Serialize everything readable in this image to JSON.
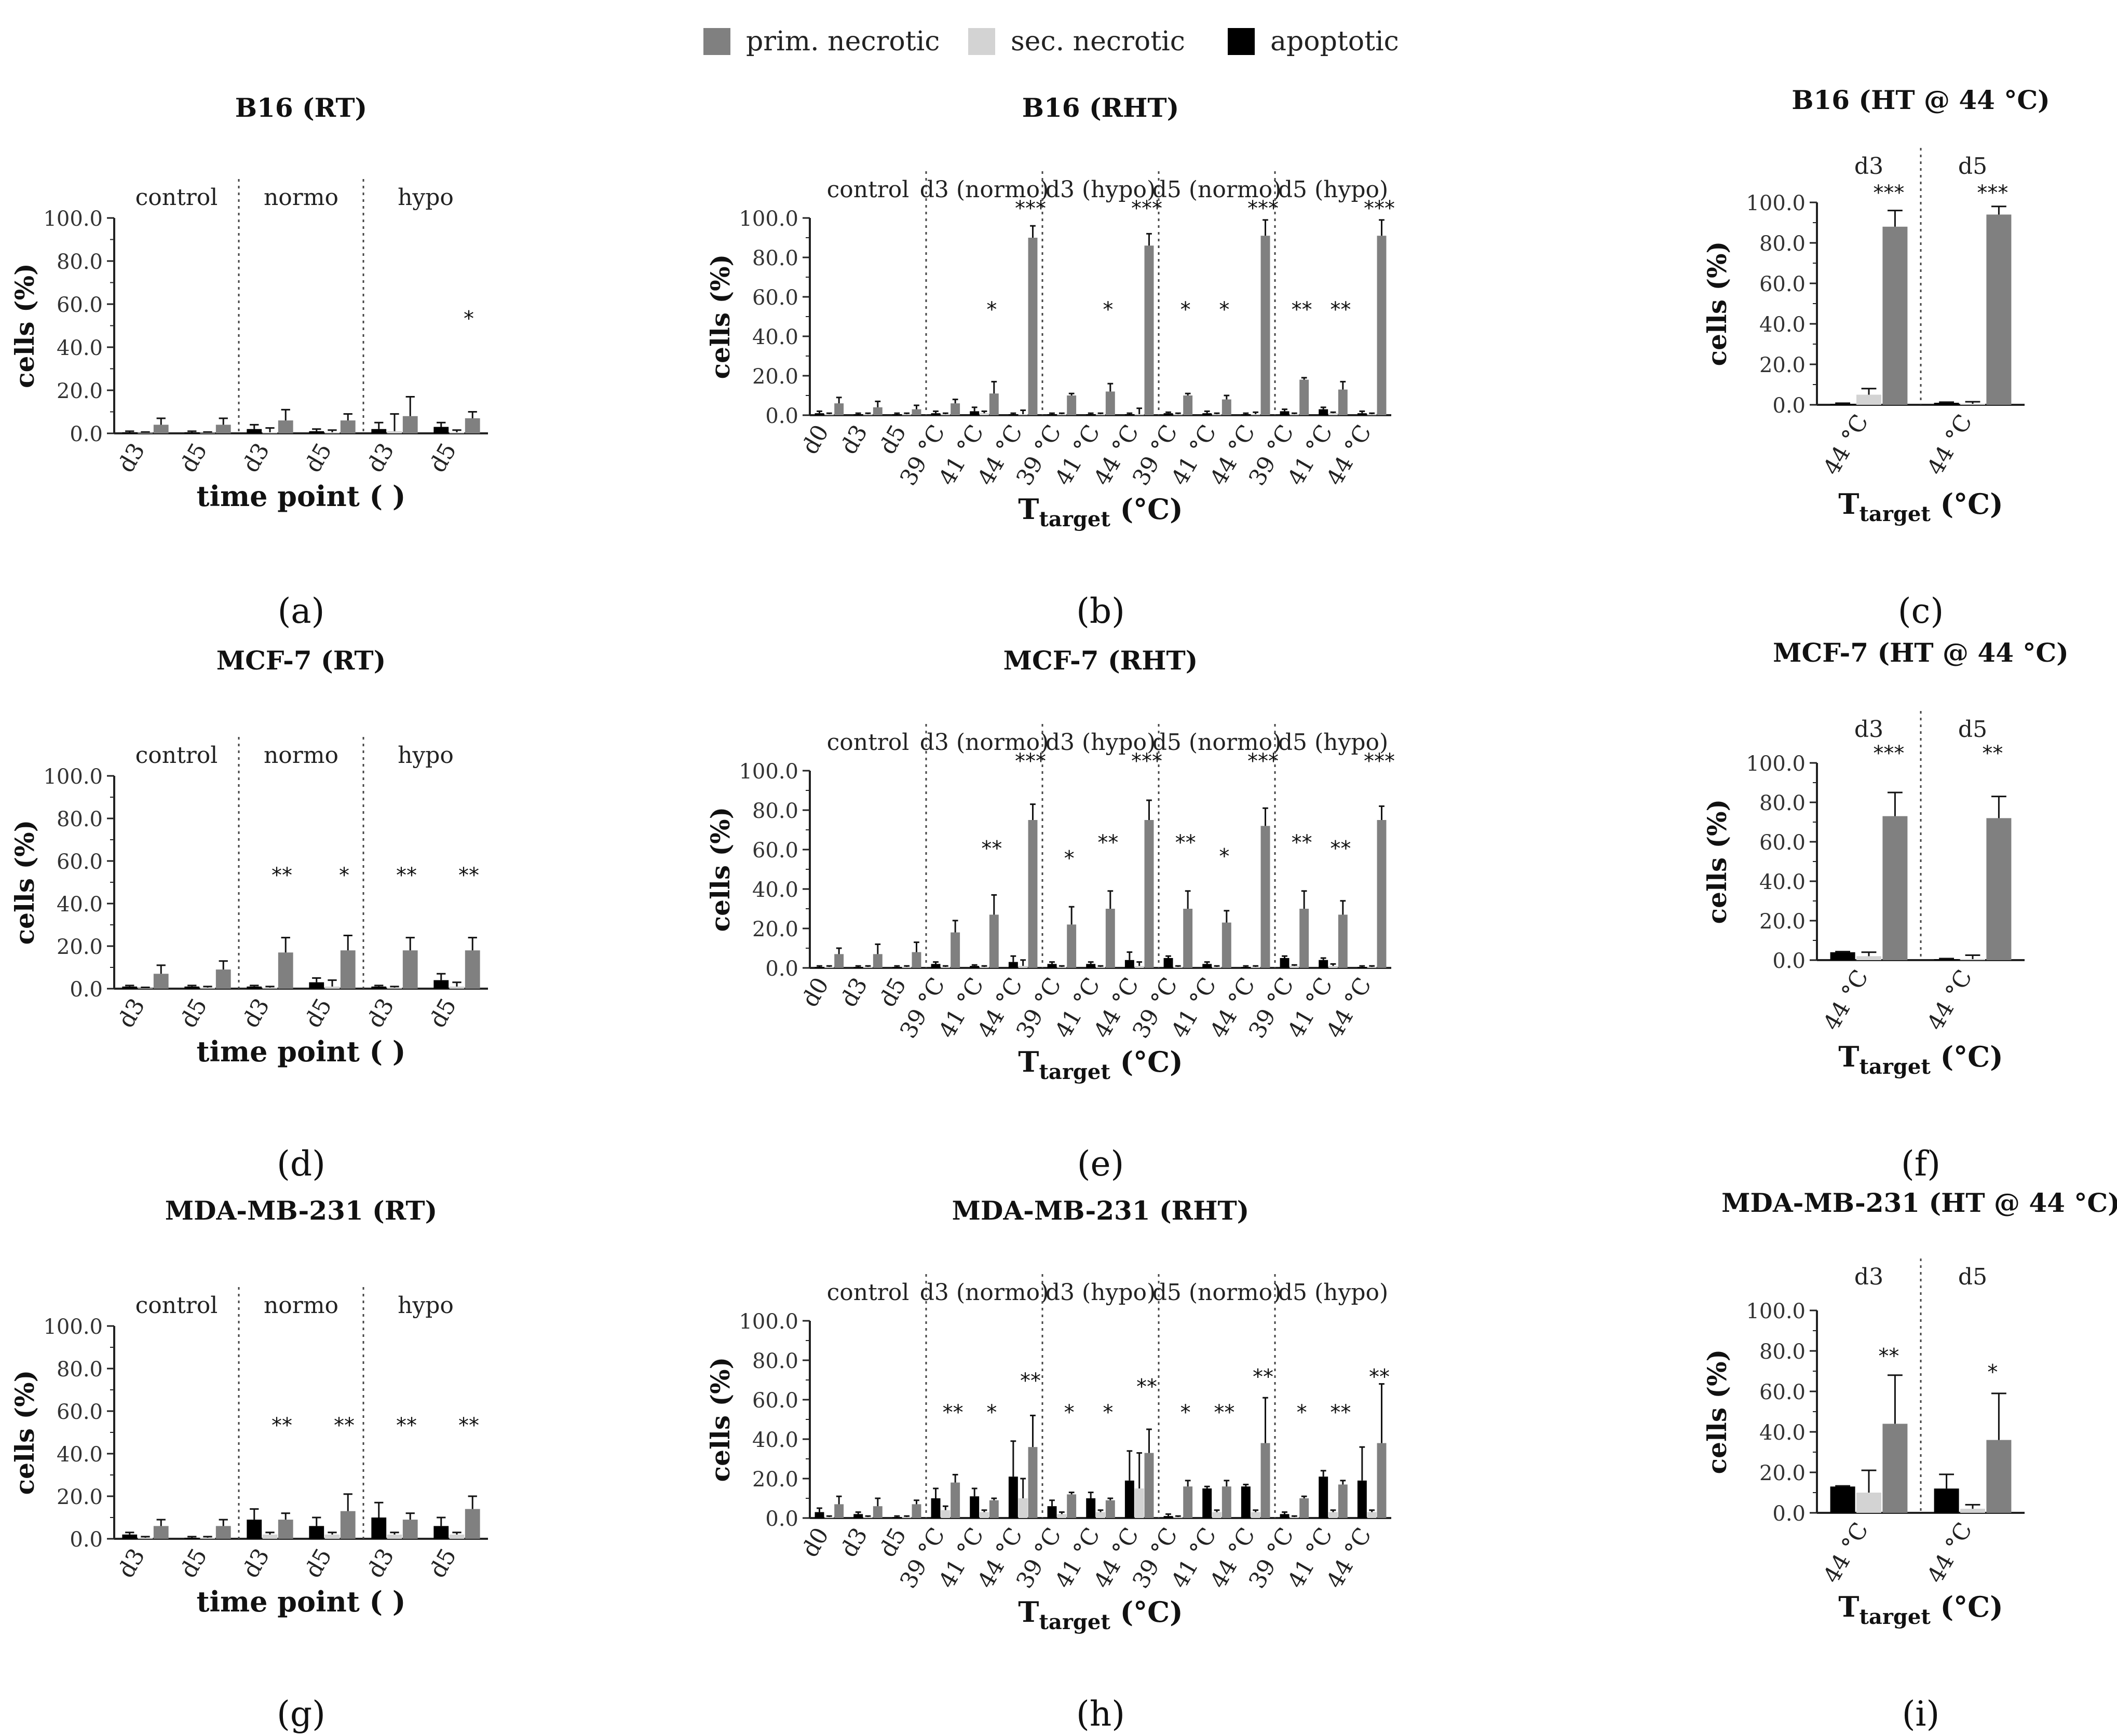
{
  "legend": {
    "items": [
      {
        "label": "prim. necrotic",
        "color": "#808080"
      },
      {
        "label": "sec. necrotic",
        "color": "#d3d3d3"
      },
      {
        "label": "apoptotic",
        "color": "#000000"
      }
    ]
  },
  "colors": {
    "prim": "#808080",
    "sec": "#d3d3d3",
    "apop": "#000000"
  },
  "chart_data": [
    {
      "id": "a",
      "letter": "(a)",
      "type": "bar",
      "title": "B16 (RT)",
      "ylabel": "cells (%)",
      "xlabel_main": "time point ( )",
      "xlabel_sub": "",
      "ylim": [
        0,
        100
      ],
      "yticks": [
        "0.0",
        "20.0",
        "40.0",
        "60.0",
        "80.0",
        "100.0"
      ],
      "groups": [
        "control",
        "normo",
        "hypo"
      ],
      "group_sizes": [
        2,
        2,
        2
      ],
      "categories": [
        "d3",
        "d5",
        "d3",
        "d5",
        "d3",
        "d5"
      ],
      "series": [
        {
          "name": "apoptotic",
          "values": [
            0.5,
            0.5,
            2,
            1,
            2,
            3
          ]
        },
        {
          "name": "sec. necrotic",
          "values": [
            0.3,
            0.3,
            0.5,
            0.5,
            1,
            0.5
          ]
        },
        {
          "name": "prim. necrotic",
          "values": [
            4,
            4,
            6,
            6,
            8,
            7
          ]
        }
      ],
      "errors": [
        {
          "name": "apoptotic",
          "values": [
            0.5,
            0.5,
            2,
            1,
            3,
            2
          ]
        },
        {
          "name": "sec. necrotic",
          "values": [
            0.3,
            0.3,
            2,
            1,
            8,
            1
          ]
        },
        {
          "name": "prim. necrotic",
          "values": [
            3,
            3,
            5,
            3,
            9,
            3
          ]
        }
      ],
      "annotations": [
        "",
        "",
        "",
        "",
        "",
        "*"
      ]
    },
    {
      "id": "b",
      "letter": "(b)",
      "type": "bar",
      "title": "B16 (RHT)",
      "ylabel": "cells (%)",
      "xlabel_main": "T",
      "xlabel_sub": "target",
      "xlabel_tail": " (°C)",
      "ylim": [
        0,
        100
      ],
      "yticks": [
        "0.0",
        "20.0",
        "40.0",
        "60.0",
        "80.0",
        "100.0"
      ],
      "groups": [
        "control",
        "d3 (normo)",
        "d3  (hypo)",
        "d5 (normo)",
        "d5 (hypo)"
      ],
      "group_sizes": [
        3,
        3,
        3,
        3,
        3
      ],
      "categories": [
        "d0",
        "d3",
        "d5",
        "39 °C",
        "41 °C",
        "44 °C",
        "39 °C",
        "41 °C",
        "44 °C",
        "39 °C",
        "41 °C",
        "44 °C",
        "39 °C",
        "41 °C",
        "44 °C"
      ],
      "series": [
        {
          "name": "apoptotic",
          "values": [
            1,
            0.5,
            0.5,
            1,
            2,
            0.5,
            0.5,
            0.5,
            0.5,
            1,
            1,
            0.5,
            2,
            3,
            1
          ]
        },
        {
          "name": "sec. necrotic",
          "values": [
            0.5,
            0.5,
            0.5,
            0.5,
            1,
            0.5,
            0.5,
            0.5,
            0.5,
            0.5,
            0.5,
            0.5,
            0.5,
            1,
            0.5
          ]
        },
        {
          "name": "prim. necrotic",
          "values": [
            6,
            4,
            3,
            6,
            11,
            90,
            10,
            12,
            86,
            10,
            8,
            91,
            18,
            13,
            91
          ]
        }
      ],
      "errors": [
        {
          "name": "apoptotic",
          "values": [
            1,
            0.5,
            0.5,
            1,
            2,
            0.5,
            0.5,
            0.5,
            0.5,
            0.5,
            1,
            0.5,
            1,
            1,
            1
          ]
        },
        {
          "name": "sec. necrotic",
          "values": [
            0.5,
            0.5,
            0.5,
            0.5,
            1,
            2,
            0.5,
            0.5,
            3,
            0.5,
            0.5,
            1,
            0.5,
            0.5,
            0.5
          ]
        },
        {
          "name": "prim. necrotic",
          "values": [
            3,
            3,
            2,
            2,
            6,
            6,
            1,
            4,
            6,
            1,
            2,
            8,
            1,
            4,
            8
          ]
        }
      ],
      "annotations": [
        "",
        "",
        "",
        "",
        "*",
        "***",
        "",
        "*",
        "***",
        "*",
        "*",
        "***",
        "**",
        "**",
        "***"
      ]
    },
    {
      "id": "c",
      "letter": "(c)",
      "type": "bar",
      "title": "B16 (HT @ 44 °C)",
      "ylabel": "cells (%)",
      "xlabel_main": "T",
      "xlabel_sub": "target",
      "xlabel_tail": " (°C)",
      "ylim": [
        0,
        100
      ],
      "yticks": [
        "0.0",
        "20.0",
        "40.0",
        "60.0",
        "80.0",
        "100.0"
      ],
      "groups": [
        "d3",
        "d5"
      ],
      "group_sizes": [
        1,
        1
      ],
      "categories": [
        "44 °C",
        "44 °C"
      ],
      "series": [
        {
          "name": "apoptotic",
          "values": [
            0.5,
            1
          ]
        },
        {
          "name": "sec. necrotic",
          "values": [
            5,
            0.5
          ]
        },
        {
          "name": "prim. necrotic",
          "values": [
            88,
            94
          ]
        }
      ],
      "errors": [
        {
          "name": "apoptotic",
          "values": [
            0.3,
            0.3
          ]
        },
        {
          "name": "sec. necrotic",
          "values": [
            3,
            1
          ]
        },
        {
          "name": "prim. necrotic",
          "values": [
            8,
            4
          ]
        }
      ],
      "annotations": [
        "***",
        "***"
      ]
    },
    {
      "id": "d",
      "letter": "(d)",
      "type": "bar",
      "title": "MCF-7 (RT)",
      "ylabel": "cells (%)",
      "xlabel_main": "time point ( )",
      "xlabel_sub": "",
      "ylim": [
        0,
        100
      ],
      "yticks": [
        "0.0",
        "20.0",
        "40.0",
        "60.0",
        "80.0",
        "100.0"
      ],
      "groups": [
        "control",
        "normo",
        "hypo"
      ],
      "group_sizes": [
        2,
        2,
        2
      ],
      "categories": [
        "d3",
        "d5",
        "d3",
        "d5",
        "d3",
        "d5"
      ],
      "series": [
        {
          "name": "apoptotic",
          "values": [
            1,
            1,
            1,
            3,
            1,
            4
          ]
        },
        {
          "name": "sec. necrotic",
          "values": [
            0.3,
            0.5,
            0.5,
            1,
            0.5,
            1
          ]
        },
        {
          "name": "prim. necrotic",
          "values": [
            7,
            9,
            17,
            18,
            18,
            18
          ]
        }
      ],
      "errors": [
        {
          "name": "apoptotic",
          "values": [
            0.5,
            0.5,
            0.5,
            2,
            0.5,
            3
          ]
        },
        {
          "name": "sec. necrotic",
          "values": [
            0.3,
            0.5,
            0.5,
            3,
            0.5,
            2
          ]
        },
        {
          "name": "prim. necrotic",
          "values": [
            4,
            4,
            7,
            7,
            6,
            6
          ]
        }
      ],
      "annotations": [
        "",
        "",
        "**",
        "*",
        "**",
        "**"
      ]
    },
    {
      "id": "e",
      "letter": "(e)",
      "type": "bar",
      "title": "MCF-7 (RHT)",
      "ylabel": "cells (%)",
      "xlabel_main": "T",
      "xlabel_sub": "target",
      "xlabel_tail": " (°C)",
      "ylim": [
        0,
        100
      ],
      "yticks": [
        "0.0",
        "20.0",
        "40.0",
        "60.0",
        "80.0",
        "100.0"
      ],
      "groups": [
        "control",
        "d3 (normo)",
        "d3  (hypo)",
        "d5 (normo)",
        "d5 (hypo)"
      ],
      "group_sizes": [
        3,
        3,
        3,
        3,
        3
      ],
      "categories": [
        "d0",
        "d3",
        "d5",
        "39 °C",
        "41 °C",
        "44 °C",
        "39 °C",
        "41 °C",
        "44 °C",
        "39 °C",
        "41 °C",
        "44 °C",
        "39 °C",
        "41 °C",
        "44 °C"
      ],
      "series": [
        {
          "name": "apoptotic",
          "values": [
            0.5,
            0.5,
            0.5,
            2,
            1,
            3,
            2,
            2,
            4,
            5,
            2,
            0.5,
            5,
            4,
            0.5
          ]
        },
        {
          "name": "sec. necrotic",
          "values": [
            0.5,
            0.5,
            0.5,
            0.5,
            0.5,
            1,
            0.5,
            0.5,
            1,
            0.5,
            0.5,
            0.5,
            1,
            1,
            0.5
          ]
        },
        {
          "name": "prim. necrotic",
          "values": [
            7,
            7,
            8,
            18,
            27,
            75,
            22,
            30,
            75,
            30,
            23,
            72,
            30,
            27,
            75
          ]
        }
      ],
      "errors": [
        {
          "name": "apoptotic",
          "values": [
            0.5,
            0.5,
            0.5,
            1,
            0.5,
            3,
            1,
            1,
            4,
            1,
            1,
            0.5,
            1,
            1,
            0.5
          ]
        },
        {
          "name": "sec. necrotic",
          "values": [
            0.5,
            0.5,
            0.5,
            0.5,
            0.5,
            3,
            0.5,
            0.5,
            2,
            0.5,
            0.5,
            0.5,
            0.5,
            1,
            0.5
          ]
        },
        {
          "name": "prim. necrotic",
          "values": [
            3,
            5,
            5,
            6,
            10,
            8,
            9,
            9,
            10,
            9,
            6,
            9,
            9,
            7,
            7
          ]
        }
      ],
      "annotations": [
        "",
        "",
        "",
        "",
        "**",
        "***",
        "*",
        "**",
        "***",
        "**",
        "*",
        "***",
        "**",
        "**",
        "***"
      ]
    },
    {
      "id": "f",
      "letter": "(f)",
      "type": "bar",
      "title": "MCF-7 (HT @ 44 °C)",
      "ylabel": "cells (%)",
      "xlabel_main": "T",
      "xlabel_sub": "target",
      "xlabel_tail": " (°C)",
      "ylim": [
        0,
        100
      ],
      "yticks": [
        "0.0",
        "20.0",
        "40.0",
        "60.0",
        "80.0",
        "100.0"
      ],
      "groups": [
        "d3",
        "d5"
      ],
      "group_sizes": [
        1,
        1
      ],
      "categories": [
        "44 °C",
        "44 °C"
      ],
      "series": [
        {
          "name": "apoptotic",
          "values": [
            4,
            0.5
          ]
        },
        {
          "name": "sec. necrotic",
          "values": [
            2,
            0.5
          ]
        },
        {
          "name": "prim. necrotic",
          "values": [
            73,
            72
          ]
        }
      ],
      "errors": [
        {
          "name": "apoptotic",
          "values": [
            0.3,
            0.3
          ]
        },
        {
          "name": "sec. necrotic",
          "values": [
            2,
            2
          ]
        },
        {
          "name": "prim. necrotic",
          "values": [
            12,
            11
          ]
        }
      ],
      "annotations": [
        "***",
        "**"
      ]
    },
    {
      "id": "g",
      "letter": "(g)",
      "type": "bar",
      "title": "MDA-MB-231 (RT)",
      "ylabel": "cells (%)",
      "xlabel_main": "time point ( )",
      "xlabel_sub": "",
      "ylim": [
        0,
        100
      ],
      "yticks": [
        "0.0",
        "20.0",
        "40.0",
        "60.0",
        "80.0",
        "100.0"
      ],
      "groups": [
        "control",
        "normo",
        "hypo"
      ],
      "group_sizes": [
        2,
        2,
        2
      ],
      "categories": [
        "d3",
        "d5",
        "d3",
        "d5",
        "d3",
        "d5"
      ],
      "series": [
        {
          "name": "apoptotic",
          "values": [
            2,
            0.5,
            9,
            6,
            10,
            6
          ]
        },
        {
          "name": "sec. necrotic",
          "values": [
            0.5,
            0.5,
            2,
            2,
            2,
            2
          ]
        },
        {
          "name": "prim. necrotic",
          "values": [
            6,
            6,
            9,
            13,
            9,
            14
          ]
        }
      ],
      "errors": [
        {
          "name": "apoptotic",
          "values": [
            1,
            0.5,
            5,
            4,
            7,
            4
          ]
        },
        {
          "name": "sec. necrotic",
          "values": [
            0.5,
            0.5,
            1,
            1,
            1,
            1
          ]
        },
        {
          "name": "prim. necrotic",
          "values": [
            3,
            3,
            3,
            8,
            3,
            6
          ]
        }
      ],
      "annotations": [
        "",
        "",
        "**",
        "**",
        "**",
        "**"
      ]
    },
    {
      "id": "h",
      "letter": "(h)",
      "type": "bar",
      "title": "MDA-MB-231 (RHT)",
      "ylabel": "cells (%)",
      "xlabel_main": "T",
      "xlabel_sub": "target",
      "xlabel_tail": " (°C)",
      "ylim": [
        0,
        100
      ],
      "yticks": [
        "0.0",
        "20.0",
        "40.0",
        "60.0",
        "80.0",
        "100.0"
      ],
      "groups": [
        "control",
        "d3 (normo)",
        "d3  (hypo)",
        "d5 (normo)",
        "d5 (hypo)"
      ],
      "group_sizes": [
        3,
        3,
        3,
        3,
        3
      ],
      "categories": [
        "d0",
        "d3",
        "d5",
        "39 °C",
        "41 °C",
        "44 °C",
        "39 °C",
        "41 °C",
        "44 °C",
        "39 °C",
        "41 °C",
        "44 °C",
        "39 °C",
        "41 °C",
        "44 °C"
      ],
      "series": [
        {
          "name": "apoptotic",
          "values": [
            3,
            2,
            0.5,
            10,
            11,
            21,
            6,
            10,
            19,
            1,
            15,
            16,
            2,
            21,
            19
          ]
        },
        {
          "name": "sec. necrotic",
          "values": [
            0.5,
            0.5,
            0.5,
            4,
            3,
            10,
            2,
            3,
            15,
            0.5,
            3,
            3,
            0.5,
            3,
            3
          ]
        },
        {
          "name": "prim. necrotic",
          "values": [
            7,
            6,
            7,
            18,
            9,
            36,
            12,
            9,
            33,
            16,
            16,
            38,
            10,
            17,
            38
          ]
        }
      ],
      "errors": [
        {
          "name": "apoptotic",
          "values": [
            2,
            1,
            0.5,
            5,
            4,
            18,
            3,
            3,
            15,
            1,
            1,
            1,
            1,
            3,
            17
          ]
        },
        {
          "name": "sec. necrotic",
          "values": [
            0.5,
            0.5,
            0.5,
            2,
            1,
            10,
            1,
            1,
            18,
            0.5,
            1,
            1,
            0.5,
            1,
            1
          ]
        },
        {
          "name": "prim. necrotic",
          "values": [
            4,
            4,
            2,
            4,
            1,
            16,
            1,
            1,
            12,
            3,
            3,
            23,
            1,
            2,
            30
          ]
        }
      ],
      "annotations": [
        "",
        "",
        "",
        "**",
        "*",
        "**",
        "*",
        "*",
        "**",
        "*",
        "**",
        "**",
        "*",
        "**",
        "**"
      ]
    },
    {
      "id": "i",
      "letter": "(i)",
      "type": "bar",
      "title": "MDA-MB-231 (HT @ 44 °C)",
      "ylabel": "cells (%)",
      "xlabel_main": "T",
      "xlabel_sub": "target",
      "xlabel_tail": " (°C)",
      "ylim": [
        0,
        100
      ],
      "yticks": [
        "0.0",
        "20.0",
        "40.0",
        "60.0",
        "80.0",
        "100.0"
      ],
      "groups": [
        "d3",
        "d5"
      ],
      "group_sizes": [
        1,
        1
      ],
      "categories": [
        "44 °C",
        "44 °C"
      ],
      "series": [
        {
          "name": "apoptotic",
          "values": [
            13,
            12
          ]
        },
        {
          "name": "sec. necrotic",
          "values": [
            10,
            2
          ]
        },
        {
          "name": "prim. necrotic",
          "values": [
            44,
            36
          ]
        }
      ],
      "errors": [
        {
          "name": "apoptotic",
          "values": [
            0.3,
            7
          ]
        },
        {
          "name": "sec. necrotic",
          "values": [
            11,
            2
          ]
        },
        {
          "name": "prim. necrotic",
          "values": [
            24,
            23
          ]
        }
      ],
      "annotations": [
        "**",
        "*"
      ]
    }
  ]
}
